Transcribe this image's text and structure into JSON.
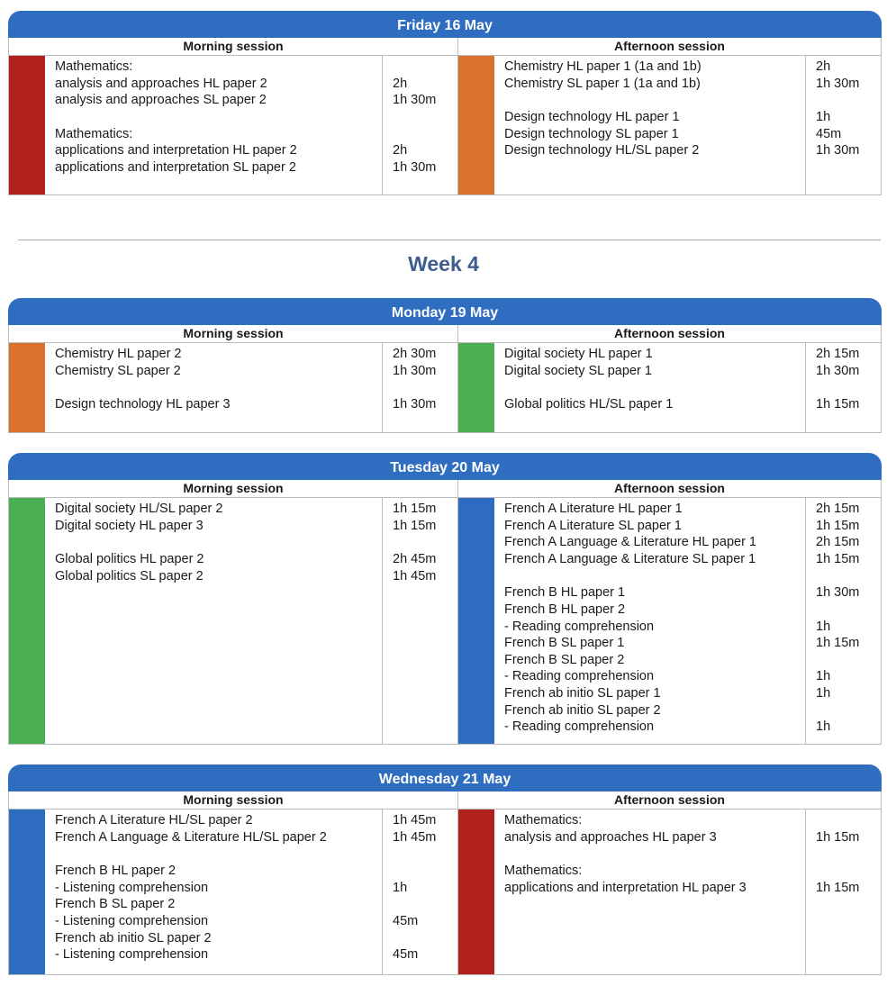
{
  "colors": {
    "header": "#2f6dc0",
    "mathematics": "#b0221b",
    "sciences": "#d9722c",
    "individuals_societies": "#4cae52",
    "language": "#2d6cc0"
  },
  "week_heading": "Week 4",
  "days": [
    {
      "title": "Friday 16 May",
      "morning": {
        "label": "Morning session",
        "color": "#b0221b",
        "groups": [
          [
            {
              "s": "Mathematics:",
              "d": ""
            },
            {
              "s": "analysis and approaches HL paper 2",
              "d": "2h"
            },
            {
              "s": "analysis and approaches SL paper 2",
              "d": "1h 30m"
            }
          ],
          [
            {
              "s": "Mathematics:",
              "d": ""
            },
            {
              "s": "applications and interpretation HL paper 2",
              "d": "2h"
            },
            {
              "s": "applications and interpretation SL paper 2",
              "d": "1h 30m"
            }
          ]
        ]
      },
      "afternoon": {
        "label": "Afternoon session",
        "color": "#d9722c",
        "groups": [
          [
            {
              "s": "Chemistry HL paper 1 (1a and 1b)",
              "d": "2h"
            },
            {
              "s": "Chemistry SL paper 1 (1a and 1b)",
              "d": "1h 30m"
            }
          ],
          [
            {
              "s": "Design technology HL paper 1",
              "d": "1h"
            },
            {
              "s": "Design technology SL paper 1",
              "d": "45m"
            },
            {
              "s": "Design technology HL/SL paper 2",
              "d": "1h 30m"
            }
          ]
        ]
      }
    },
    {
      "title": "Monday 19 May",
      "morning": {
        "label": "Morning session",
        "color": "#d9722c",
        "groups": [
          [
            {
              "s": "Chemistry HL paper 2",
              "d": "2h 30m"
            },
            {
              "s": "Chemistry SL paper 2",
              "d": "1h 30m"
            }
          ],
          [
            {
              "s": "Design technology HL paper 3",
              "d": "1h 30m"
            }
          ]
        ]
      },
      "afternoon": {
        "label": "Afternoon session",
        "color": "#4cae52",
        "groups": [
          [
            {
              "s": "Digital society HL paper 1",
              "d": "2h 15m"
            },
            {
              "s": "Digital society SL paper 1",
              "d": "1h 30m"
            }
          ],
          [
            {
              "s": "Global politics HL/SL paper 1",
              "d": "1h 15m"
            }
          ]
        ]
      }
    },
    {
      "title": "Tuesday 20 May",
      "morning": {
        "label": "Morning session",
        "color": "#4cae52",
        "groups": [
          [
            {
              "s": "Digital society HL/SL paper 2",
              "d": "1h 15m"
            },
            {
              "s": "Digital society HL paper 3",
              "d": "1h 15m"
            }
          ],
          [
            {
              "s": "Global politics HL paper 2",
              "d": "2h 45m"
            },
            {
              "s": "Global politics SL paper 2",
              "d": "1h 45m"
            }
          ]
        ]
      },
      "afternoon": {
        "label": "Afternoon session",
        "color": "#2d6cc0",
        "groups": [
          [
            {
              "s": "French A Literature HL paper 1",
              "d": "2h 15m"
            },
            {
              "s": "French A Literature SL paper 1",
              "d": "1h 15m"
            },
            {
              "s": "French A Language & Literature HL paper 1",
              "d": "2h 15m"
            },
            {
              "s": "French A Language & Literature SL paper 1",
              "d": "1h 15m"
            }
          ],
          [
            {
              "s": "French B HL paper 1",
              "d": "1h 30m"
            },
            {
              "s": "French B HL paper 2",
              "d": ""
            },
            {
              "s": "- Reading comprehension",
              "d": "1h"
            },
            {
              "s": "French B SL paper 1",
              "d": "1h 15m"
            },
            {
              "s": "French B SL paper 2",
              "d": ""
            },
            {
              "s": "- Reading comprehension",
              "d": "1h"
            },
            {
              "s": "French ab initio SL paper 1",
              "d": "1h"
            },
            {
              "s": "French ab initio SL paper 2",
              "d": ""
            },
            {
              "s": "- Reading comprehension",
              "d": "1h"
            }
          ]
        ]
      }
    },
    {
      "title": "Wednesday 21 May",
      "morning": {
        "label": "Morning session",
        "color": "#2d6cc0",
        "groups": [
          [
            {
              "s": "French A Literature HL/SL paper 2",
              "d": "1h 45m"
            },
            {
              "s": "French A Language & Literature HL/SL paper 2",
              "d": "1h 45m"
            }
          ],
          [
            {
              "s": "French B HL paper 2",
              "d": ""
            },
            {
              "s": "- Listening comprehension",
              "d": "1h"
            },
            {
              "s": "French B SL paper 2",
              "d": ""
            },
            {
              "s": "- Listening comprehension",
              "d": "45m"
            },
            {
              "s": "French ab initio SL paper 2",
              "d": ""
            },
            {
              "s": "- Listening comprehension",
              "d": "45m"
            }
          ]
        ]
      },
      "afternoon": {
        "label": "Afternoon session",
        "color": "#b0221b",
        "groups": [
          [
            {
              "s": "Mathematics:",
              "d": ""
            },
            {
              "s": "analysis and approaches HL paper 3",
              "d": "1h 15m"
            }
          ],
          [
            {
              "s": "Mathematics:",
              "d": ""
            },
            {
              "s": "applications and interpretation HL paper 3",
              "d": "1h 15m"
            }
          ]
        ]
      }
    }
  ]
}
